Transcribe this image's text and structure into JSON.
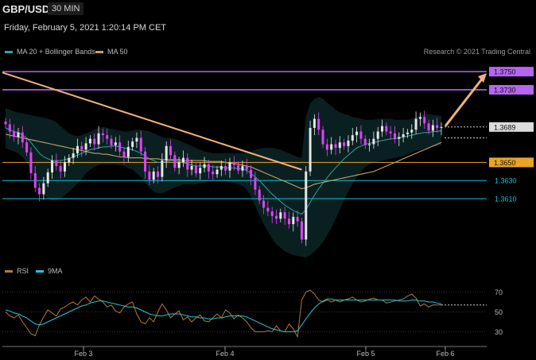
{
  "header": {
    "symbol": "GBP/USD",
    "timeframe": "30 MIN"
  },
  "timestamp": "Friday, February 5, 2021 1:20:14 PM CET",
  "credit": "Research © 2021 Trading Central",
  "colors": {
    "price_up": "#e6e6e6",
    "price_down": "#e040fb",
    "ma20": "#2fa4a0",
    "ma50": "#c8a165",
    "resistance": "#b565f0",
    "support": "#0fc3d9",
    "pivot": "#e9a326",
    "rsi": "#b07a3a",
    "rsi_ma": "#29c4d6"
  },
  "chart_data": [
    {
      "type": "candlestick",
      "title": "GBP/USD",
      "timeframe": "30 MIN",
      "legend": [
        "MA 20 + Bollinger Bands",
        "MA 50"
      ],
      "x_ticks": [
        "Feb 3",
        "Feb 4",
        "Feb 5",
        "Feb 6"
      ],
      "current_price": "1.3689",
      "levels": [
        {
          "label": "1.3750",
          "value": 1.375,
          "kind": "resistance"
        },
        {
          "label": "1.3730",
          "value": 1.373,
          "kind": "resistance"
        },
        {
          "label": "1.3650",
          "value": 1.365,
          "kind": "pivot"
        },
        {
          "label": "1.3630",
          "value": 1.363,
          "kind": "support"
        },
        {
          "label": "1.3610",
          "value": 1.361,
          "kind": "support"
        }
      ],
      "y_range": [
        1.354,
        1.3765
      ],
      "close": [
        1.3692,
        1.3684,
        1.3678,
        1.3683,
        1.3672,
        1.3661,
        1.3638,
        1.3622,
        1.3615,
        1.3627,
        1.3639,
        1.3652,
        1.3646,
        1.364,
        1.365,
        1.3655,
        1.366,
        1.3668,
        1.3664,
        1.3671,
        1.3676,
        1.367,
        1.3682,
        1.368,
        1.3676,
        1.3669,
        1.3672,
        1.3662,
        1.3656,
        1.3667,
        1.3673,
        1.3677,
        1.3662,
        1.364,
        1.3631,
        1.364,
        1.3634,
        1.3652,
        1.3668,
        1.3658,
        1.3644,
        1.365,
        1.3655,
        1.3642,
        1.3646,
        1.3638,
        1.3644,
        1.3648,
        1.364,
        1.3637,
        1.3642,
        1.3646,
        1.3641,
        1.365,
        1.3647,
        1.3641,
        1.3646,
        1.3642,
        1.3633,
        1.362,
        1.3608,
        1.36,
        1.3596,
        1.3591,
        1.3588,
        1.3595,
        1.3588,
        1.3582,
        1.359,
        1.3585,
        1.3565,
        1.364,
        1.3688,
        1.3698,
        1.3686,
        1.367,
        1.3664,
        1.367,
        1.3666,
        1.3672,
        1.3668,
        1.3674,
        1.368,
        1.3684,
        1.3676,
        1.3669,
        1.367,
        1.3676,
        1.3684,
        1.369,
        1.3684,
        1.3682,
        1.3676,
        1.3678,
        1.3681,
        1.3683,
        1.3686,
        1.3698,
        1.37,
        1.3693,
        1.3685,
        1.3691,
        1.3688,
        1.3689
      ],
      "ma20": [
        1.3688,
        1.3686,
        1.3684,
        1.3683,
        1.368,
        1.3677,
        1.3672,
        1.3666,
        1.366,
        1.3656,
        1.3654,
        1.3652,
        1.3652,
        1.3652,
        1.3653,
        1.3654,
        1.3656,
        1.3658,
        1.366,
        1.3662,
        1.3664,
        1.3665,
        1.3666,
        1.3667,
        1.3667,
        1.3668,
        1.3668,
        1.3667,
        1.3666,
        1.3665,
        1.3664,
        1.3662,
        1.366,
        1.3657,
        1.3654,
        1.3652,
        1.365,
        1.365,
        1.3651,
        1.3652,
        1.3652,
        1.3651,
        1.365,
        1.3648,
        1.3647,
        1.3646,
        1.3646,
        1.3646,
        1.3646,
        1.3645,
        1.3645,
        1.3645,
        1.3644,
        1.3644,
        1.3644,
        1.3643,
        1.3643,
        1.3641,
        1.3638,
        1.3634,
        1.363,
        1.3625,
        1.362,
        1.3615,
        1.3611,
        1.3607,
        1.3603,
        1.36,
        1.3597,
        1.3595,
        1.3593,
        1.3598,
        1.3606,
        1.3614,
        1.3621,
        1.3627,
        1.3633,
        1.3639,
        1.3644,
        1.3649,
        1.3654,
        1.3658,
        1.3662,
        1.3666,
        1.3668,
        1.367,
        1.3671,
        1.3672,
        1.3673,
        1.3674,
        1.3675,
        1.3676,
        1.3676,
        1.3677,
        1.3678,
        1.3679,
        1.368,
        1.3681,
        1.3682,
        1.3683,
        1.3683,
        1.3684,
        1.3684,
        1.3685
      ],
      "bb_upper": [
        1.371,
        1.3708,
        1.3706,
        1.3705,
        1.3704,
        1.3703,
        1.3702,
        1.3701,
        1.37,
        1.3699,
        1.3698,
        1.3697,
        1.3694,
        1.369,
        1.3686,
        1.3682,
        1.368,
        1.3679,
        1.368,
        1.3682,
        1.3684,
        1.3686,
        1.3688,
        1.3689,
        1.3688,
        1.3687,
        1.3686,
        1.3685,
        1.3684,
        1.3684,
        1.3685,
        1.3686,
        1.3686,
        1.3685,
        1.3684,
        1.3682,
        1.368,
        1.3678,
        1.3677,
        1.3677,
        1.3676,
        1.3674,
        1.3672,
        1.367,
        1.3668,
        1.3666,
        1.3664,
        1.3662,
        1.3661,
        1.366,
        1.366,
        1.366,
        1.366,
        1.366,
        1.366,
        1.366,
        1.366,
        1.3661,
        1.3662,
        1.3664,
        1.3665,
        1.3666,
        1.3666,
        1.3666,
        1.3665,
        1.3664,
        1.3662,
        1.366,
        1.3658,
        1.3656,
        1.3655,
        1.37,
        1.3715,
        1.372,
        1.3722,
        1.372,
        1.3716,
        1.3712,
        1.3708,
        1.3705,
        1.3703,
        1.3702,
        1.37,
        1.3699,
        1.3698,
        1.3697,
        1.3697,
        1.3697,
        1.3698,
        1.3698,
        1.3698,
        1.3698,
        1.3697,
        1.3697,
        1.3697,
        1.3697,
        1.3698,
        1.37,
        1.3702,
        1.3703,
        1.3703,
        1.3702,
        1.3702,
        1.3701
      ],
      "bb_lower": [
        1.3666,
        1.3664,
        1.3662,
        1.366,
        1.3656,
        1.365,
        1.3642,
        1.3632,
        1.3622,
        1.3614,
        1.361,
        1.3608,
        1.3608,
        1.361,
        1.3614,
        1.3618,
        1.3622,
        1.3627,
        1.3632,
        1.3638,
        1.3642,
        1.3645,
        1.3647,
        1.3648,
        1.3648,
        1.3648,
        1.3648,
        1.3647,
        1.3646,
        1.3644,
        1.3642,
        1.3638,
        1.3634,
        1.3628,
        1.3622,
        1.3618,
        1.3616,
        1.3616,
        1.3618,
        1.362,
        1.3622,
        1.3624,
        1.3626,
        1.3626,
        1.3626,
        1.3626,
        1.3627,
        1.3628,
        1.363,
        1.363,
        1.363,
        1.363,
        1.3629,
        1.3628,
        1.3627,
        1.3626,
        1.3624,
        1.362,
        1.3612,
        1.3602,
        1.3592,
        1.3582,
        1.3574,
        1.3566,
        1.356,
        1.3556,
        1.3552,
        1.355,
        1.3548,
        1.3547,
        1.3546,
        1.3545,
        1.3548,
        1.3552,
        1.3556,
        1.3562,
        1.357,
        1.3578,
        1.3588,
        1.3598,
        1.3608,
        1.3618,
        1.3626,
        1.3634,
        1.364,
        1.3645,
        1.3648,
        1.365,
        1.3651,
        1.3652,
        1.3653,
        1.3654,
        1.3655,
        1.3656,
        1.3657,
        1.3659,
        1.3661,
        1.3663,
        1.3664,
        1.3665,
        1.3666,
        1.3667,
        1.3668,
        1.3669
      ],
      "ma50": [
        1.3681,
        1.368,
        1.3679,
        1.3678,
        1.3677,
        1.3676,
        1.3675,
        1.3674,
        1.3673,
        1.3672,
        1.3671,
        1.367,
        1.3669,
        1.3668,
        1.3667,
        1.3666,
        1.3665,
        1.3664,
        1.3663,
        1.3662,
        1.3661,
        1.366,
        1.366,
        1.3659,
        1.3659,
        1.3658,
        1.3657,
        1.3656,
        1.3656,
        1.3655,
        1.3655,
        1.3655,
        1.3655,
        1.3654,
        1.3654,
        1.3654,
        1.3654,
        1.3653,
        1.3653,
        1.3653,
        1.3653,
        1.3653,
        1.3652,
        1.3652,
        1.3652,
        1.3652,
        1.3652,
        1.3652,
        1.3651,
        1.3651,
        1.3651,
        1.3651,
        1.365,
        1.3649,
        1.3649,
        1.3648,
        1.3647,
        1.3646,
        1.3645,
        1.3643,
        1.3641,
        1.3639,
        1.3637,
        1.3635,
        1.3633,
        1.3631,
        1.3629,
        1.3627,
        1.3625,
        1.3623,
        1.3621,
        1.3622,
        1.3624,
        1.3626,
        1.3627,
        1.3628,
        1.3629,
        1.363,
        1.3631,
        1.3632,
        1.3633,
        1.3634,
        1.3635,
        1.3636,
        1.3637,
        1.3638,
        1.3639,
        1.364,
        1.3642,
        1.3644,
        1.3646,
        1.3648,
        1.365,
        1.3652,
        1.3654,
        1.3656,
        1.3658,
        1.366,
        1.3662,
        1.3664,
        1.3666,
        1.3668,
        1.367,
        1.3672
      ]
    },
    {
      "type": "line",
      "title": "RSI",
      "legend": [
        "RSI",
        "9MA"
      ],
      "y_ticks": [
        70,
        50,
        30
      ],
      "y_range": [
        20,
        80
      ],
      "rsi": [
        50,
        46,
        44,
        47,
        40,
        34,
        28,
        26,
        37,
        45,
        52,
        49,
        46,
        53,
        55,
        58,
        60,
        57,
        62,
        65,
        60,
        66,
        63,
        60,
        55,
        57,
        51,
        49,
        55,
        58,
        60,
        48,
        40,
        38,
        44,
        40,
        50,
        58,
        52,
        44,
        48,
        51,
        42,
        45,
        40,
        44,
        47,
        41,
        40,
        44,
        48,
        44,
        52,
        49,
        43,
        47,
        44,
        40,
        34,
        30,
        30,
        30,
        31,
        30,
        36,
        31,
        30,
        38,
        33,
        25,
        62,
        70,
        72,
        68,
        62,
        60,
        62,
        60,
        62,
        60,
        62,
        63,
        65,
        62,
        60,
        61,
        63,
        64,
        62,
        62,
        59,
        60,
        61,
        62,
        63,
        66,
        68,
        64,
        56,
        58,
        55,
        57,
        57,
        57
      ],
      "rsi_ma": [
        52,
        51,
        49,
        48,
        46,
        44,
        41,
        38,
        37,
        38,
        40,
        42,
        44,
        46,
        48,
        50,
        52,
        54,
        56,
        57,
        59,
        60,
        61,
        61,
        60,
        59,
        58,
        57,
        56,
        55,
        55,
        54,
        52,
        50,
        48,
        47,
        46,
        46,
        47,
        48,
        48,
        48,
        47,
        46,
        45,
        45,
        44,
        44,
        43,
        43,
        44,
        44,
        45,
        46,
        46,
        46,
        46,
        45,
        43,
        41,
        39,
        37,
        35,
        33,
        32,
        31,
        30,
        30,
        30,
        31,
        37,
        43,
        49,
        54,
        58,
        61,
        63,
        63,
        62,
        62,
        62,
        62,
        62,
        62,
        62,
        62,
        62,
        62,
        62,
        62,
        62,
        62,
        62,
        61,
        61,
        61,
        62,
        62,
        61,
        61,
        60,
        60,
        59,
        58
      ]
    }
  ]
}
